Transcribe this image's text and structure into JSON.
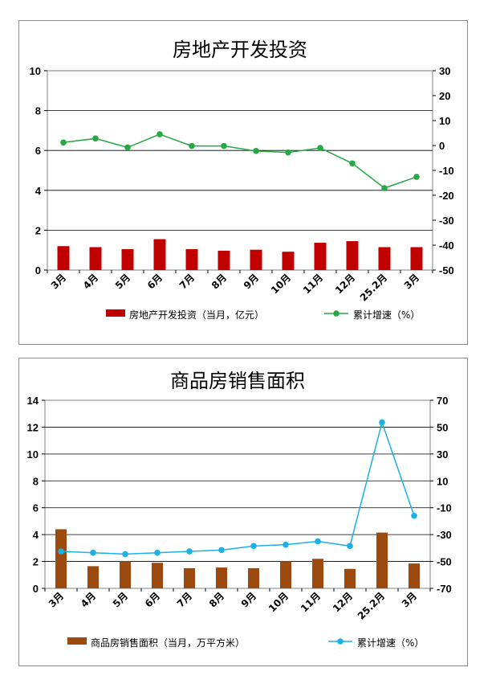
{
  "chart_data": [
    {
      "type": "bar",
      "title": "房地产开发投资",
      "categories": [
        "3月",
        "4月",
        "5月",
        "6月",
        "7月",
        "8月",
        "9月",
        "10月",
        "11月",
        "12月",
        "25.2月",
        "3月"
      ],
      "left_axis": {
        "ylim": [
          0,
          10
        ],
        "ticks": [
          "0",
          "2",
          "4",
          "6",
          "8",
          "10"
        ]
      },
      "right_axis": {
        "ylim": [
          -50,
          30
        ],
        "ticks": [
          "-50",
          "-40",
          "-30",
          "-20",
          "-10",
          "0",
          "10",
          "20",
          "30"
        ]
      },
      "grid": true,
      "legend_position": "bottom",
      "series": [
        {
          "name": "房地产开发投资（当月，亿元）",
          "type": "bar",
          "axis": "left",
          "color": "#c00000",
          "values": [
            1.2,
            1.15,
            1.05,
            1.55,
            1.05,
            0.97,
            1.02,
            0.92,
            1.37,
            1.45,
            1.15,
            1.15
          ]
        },
        {
          "name": "累计增速（%）",
          "type": "line",
          "axis": "right",
          "color": "#28a745",
          "values": [
            1.2,
            2.8,
            -0.8,
            4.5,
            -0.2,
            -0.2,
            -2.2,
            -2.8,
            -1.0,
            -7.2,
            -17.1,
            -12.6
          ]
        }
      ]
    },
    {
      "type": "bar",
      "title": "商品房销售面积",
      "categories": [
        "3月",
        "4月",
        "5月",
        "6月",
        "7月",
        "8月",
        "9月",
        "10月",
        "11月",
        "12月",
        "25.2月",
        "3月"
      ],
      "left_axis": {
        "ylim": [
          0,
          14
        ],
        "ticks": [
          "0",
          "2",
          "4",
          "6",
          "8",
          "10",
          "12",
          "14"
        ]
      },
      "right_axis": {
        "ylim": [
          -70,
          70
        ],
        "ticks": [
          "-70",
          "-50",
          "-30",
          "-10",
          "10",
          "30",
          "50",
          "70"
        ]
      },
      "grid": true,
      "legend_position": "bottom",
      "series": [
        {
          "name": "商品房销售面积（当月，万平方米）",
          "type": "bar",
          "axis": "left",
          "color": "#9c4a10",
          "values": [
            4.4,
            1.65,
            2.0,
            1.9,
            1.5,
            1.55,
            1.5,
            2.0,
            2.2,
            1.45,
            4.15,
            1.85
          ]
        },
        {
          "name": "累计增速（%）",
          "type": "line",
          "axis": "right",
          "color": "#1cb0e8",
          "values": [
            -42.5,
            -43.5,
            -44.5,
            -43.5,
            -42.5,
            -41.5,
            -38.5,
            -37.5,
            -35.0,
            -38.5,
            53.5,
            -16.0
          ]
        }
      ]
    }
  ]
}
